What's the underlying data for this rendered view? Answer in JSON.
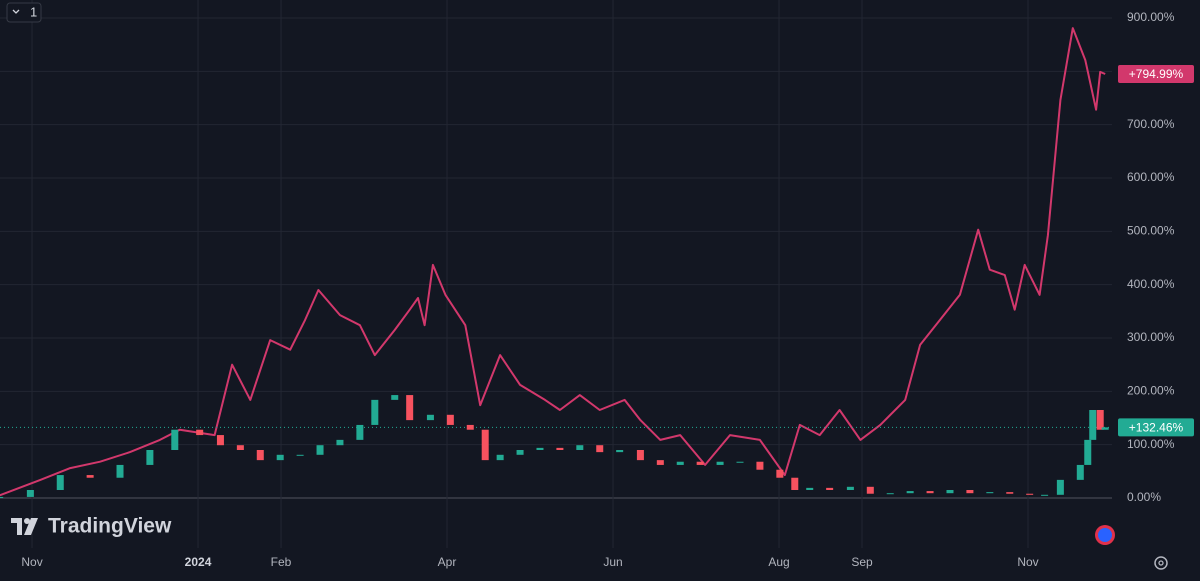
{
  "chart_data": {
    "type": "line",
    "toolbar": {
      "interval": "1"
    },
    "logo": "TradingView",
    "grid": true,
    "xlim": [
      -0.386,
      13.012
    ],
    "ylim": [
      -93.75,
      933.75
    ],
    "xticks": [
      {
        "value": 0,
        "label": "Nov"
      },
      {
        "value": 2,
        "label": "2024"
      },
      {
        "value": 3,
        "label": "Feb"
      },
      {
        "value": 5,
        "label": "Apr"
      },
      {
        "value": 7,
        "label": "Jun"
      },
      {
        "value": 9,
        "label": "Aug"
      },
      {
        "value": 10,
        "label": "Sep"
      },
      {
        "value": 12,
        "label": "Nov"
      }
    ],
    "yticks": [
      {
        "value": 0,
        "label": "0.00%"
      },
      {
        "value": 100,
        "label": "100.00%"
      },
      {
        "value": 200,
        "label": "200.00%"
      },
      {
        "value": 300,
        "label": "300.00%"
      },
      {
        "value": 400,
        "label": "400.00%"
      },
      {
        "value": 500,
        "label": "500.00%"
      },
      {
        "value": 600,
        "label": "600.00%"
      },
      {
        "value": 700,
        "label": "700.00%"
      },
      {
        "value": 800,
        "label": "800.00%"
      },
      {
        "value": 900,
        "label": "900.00%"
      }
    ],
    "series": [
      {
        "type": "line",
        "color": "#d2386c",
        "last_label": "+794.99%",
        "x": [
          -0.39,
          0.1,
          0.46,
          0.82,
          1.18,
          1.54,
          1.78,
          2.2,
          2.41,
          2.63,
          2.87,
          3.11,
          3.29,
          3.45,
          3.71,
          3.95,
          4.13,
          4.37,
          4.55,
          4.65,
          4.73,
          4.83,
          4.98,
          5.22,
          5.4,
          5.64,
          5.88,
          6.18,
          6.36,
          6.6,
          6.84,
          7.14,
          7.33,
          7.57,
          7.81,
          8.11,
          8.41,
          8.77,
          9.07,
          9.25,
          9.49,
          9.73,
          9.98,
          10.22,
          10.52,
          10.7,
          10.94,
          11.18,
          11.4,
          11.54,
          11.72,
          11.84,
          11.96,
          12.14,
          12.24,
          12.39,
          12.54,
          12.69,
          12.82,
          12.87,
          12.93
        ],
        "values": [
          5,
          34,
          56,
          68,
          86,
          109,
          128,
          118,
          250,
          184,
          296,
          278,
          334,
          390,
          343,
          324,
          268,
          315,
          353,
          375,
          324,
          437,
          381,
          324,
          174,
          268,
          212,
          184,
          165,
          193,
          165,
          184,
          146,
          109,
          118,
          62,
          118,
          109,
          43,
          137,
          118,
          165,
          109,
          137,
          184,
          287,
          334,
          381,
          503,
          428,
          418,
          353,
          437,
          381,
          493,
          746,
          881,
          821,
          728,
          799,
          794.99
        ]
      },
      {
        "type": "candlestick",
        "up_color": "#22ab94",
        "down_color": "#f7525f",
        "last_label": "+132.46%",
        "x": [
          -0.39,
          -0.02,
          0.34,
          0.7,
          1.06,
          1.42,
          1.72,
          2.02,
          2.27,
          2.51,
          2.75,
          2.99,
          3.23,
          3.47,
          3.71,
          3.95,
          4.13,
          4.37,
          4.55,
          4.8,
          5.04,
          5.28,
          5.46,
          5.64,
          5.88,
          6.12,
          6.36,
          6.6,
          6.84,
          7.08,
          7.33,
          7.57,
          7.81,
          8.05,
          8.29,
          8.53,
          8.77,
          9.01,
          9.19,
          9.37,
          9.61,
          9.86,
          10.1,
          10.34,
          10.58,
          10.82,
          11.06,
          11.3,
          11.54,
          11.78,
          12.02,
          12.2,
          12.39,
          12.63,
          12.72,
          12.78,
          12.87,
          12.93
        ],
        "values": [
          2,
          15,
          43,
          38,
          62,
          90,
          128,
          118,
          99,
          90,
          71,
          81,
          81,
          99,
          109,
          137,
          184,
          193,
          146,
          156,
          137,
          128,
          71,
          81,
          90,
          94,
          90,
          99,
          86,
          90,
          71,
          62,
          68,
          62,
          68,
          68,
          53,
          38,
          15,
          19,
          15,
          21,
          8,
          9,
          13,
          9,
          15,
          9,
          11,
          8,
          6,
          6,
          34,
          62,
          109,
          165,
          128,
          132.46
        ]
      }
    ]
  }
}
